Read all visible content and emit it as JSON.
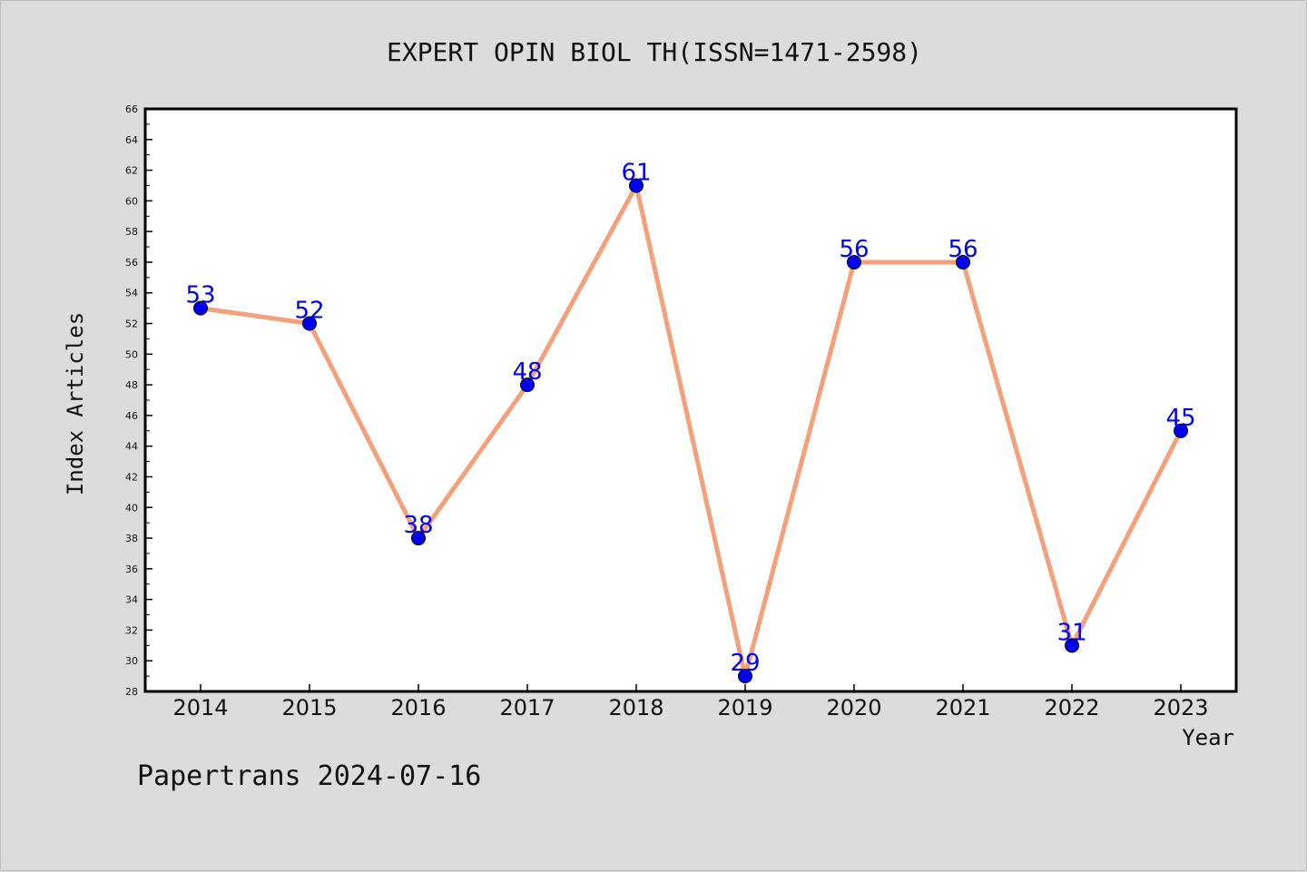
{
  "chart_data": {
    "type": "line",
    "title": "EXPERT OPIN BIOL TH(ISSN=1471-2598)",
    "xlabel": "Year",
    "ylabel": "Index Articles",
    "categories": [
      "2014",
      "2015",
      "2016",
      "2017",
      "2018",
      "2019",
      "2020",
      "2021",
      "2022",
      "2023"
    ],
    "values": [
      53,
      52,
      38,
      48,
      61,
      29,
      56,
      56,
      31,
      45
    ],
    "ylim": [
      28,
      66
    ],
    "ytick_step": 2,
    "grid": false,
    "legend": "none",
    "line_color": "#f4a07a",
    "marker_color": "#0000ee",
    "label_color": "#0000ee"
  },
  "footer": {
    "credit": "Papertrans 2024-07-16"
  }
}
